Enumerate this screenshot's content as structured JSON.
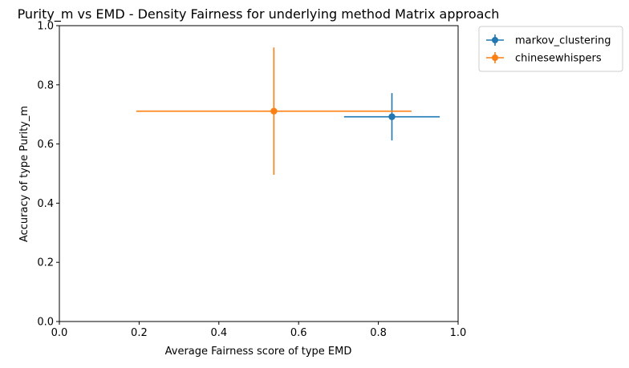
{
  "chart_data": {
    "type": "scatter",
    "title": "Purity_m vs EMD - Density Fairness for underlying method Matrix approach",
    "xlabel": "Average Fairness score of type EMD",
    "ylabel": "Accuracy of type Purity_m",
    "xlim": [
      0.0,
      1.0
    ],
    "ylim": [
      0.0,
      1.0
    ],
    "xticks": [
      "0.0",
      "0.2",
      "0.4",
      "0.6",
      "0.8",
      "1.0"
    ],
    "yticks": [
      "0.0",
      "0.2",
      "0.4",
      "0.6",
      "0.8",
      "1.0"
    ],
    "grid": false,
    "legend_position": "outside-top-right",
    "series": [
      {
        "name": "markov_clustering",
        "color": "#1f77b4",
        "x": 0.834,
        "y": 0.692,
        "xerr": 0.12,
        "yerr": 0.08
      },
      {
        "name": "chinesewhispers",
        "color": "#ff7f0e",
        "x": 0.538,
        "y": 0.711,
        "xerr": 0.345,
        "yerr": 0.215
      }
    ]
  }
}
